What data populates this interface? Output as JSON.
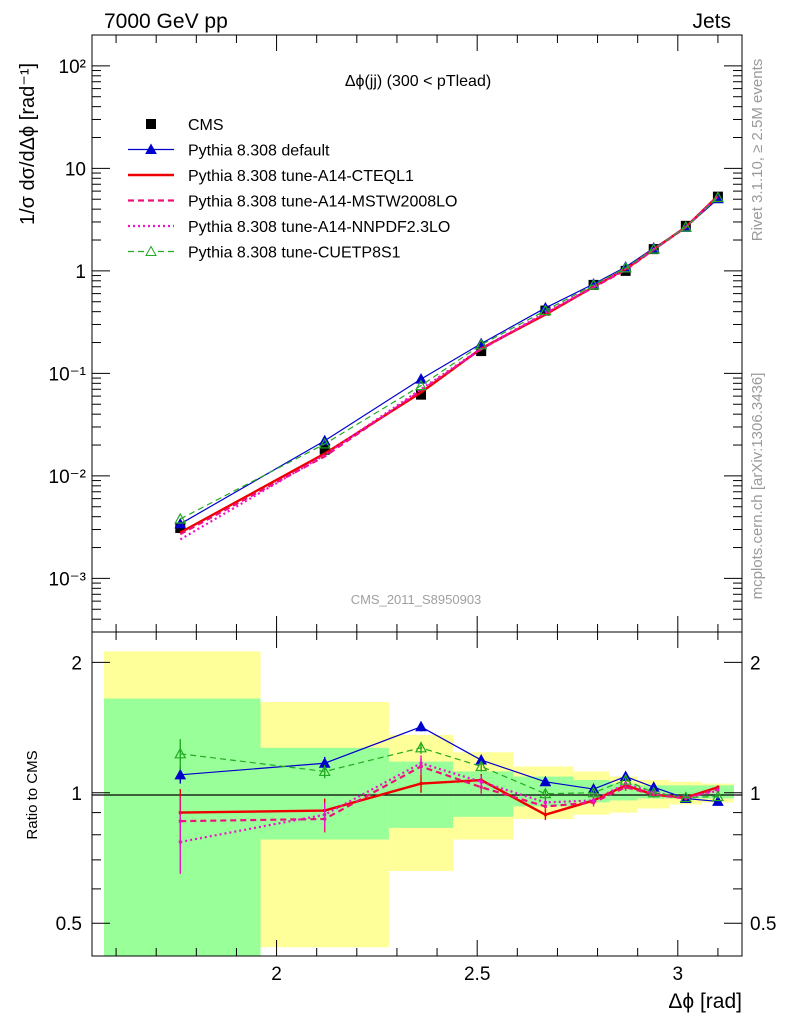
{
  "header": {
    "left": "7000 GeV pp",
    "right": "Jets"
  },
  "side_labels": {
    "rivet": "Rivet 3.1.10, ≥ 2.5M events",
    "source": "mcplots.cern.ch [arXiv:1306.3436]"
  },
  "chart_data": [
    {
      "type": "line",
      "title": "Δϕ(jj) (300 < pTlead)",
      "watermark": "CMS_2011_S8950903",
      "ylabel": "1/σ dσ/dΔϕ [rad⁻¹]",
      "yscale": "log",
      "ylim": [
        0.0003,
        200
      ],
      "xlim": [
        1.54,
        3.16
      ],
      "ytick_labels": [
        {
          "text": "10²",
          "value": 100
        },
        {
          "text": "10",
          "value": 10
        },
        {
          "text": "1",
          "value": 1
        },
        {
          "text": "10⁻¹",
          "value": 0.1
        },
        {
          "text": "10⁻²",
          "value": 0.01
        },
        {
          "text": "10⁻³",
          "value": 0.001
        }
      ],
      "legend_position": "top-left",
      "x": [
        1.76,
        2.12,
        2.36,
        2.51,
        2.67,
        2.79,
        2.87,
        2.94,
        3.02,
        3.1
      ],
      "series": [
        {
          "name": "CMS",
          "color": "#000000",
          "style": "points",
          "values": [
            0.0031,
            0.018,
            0.062,
            0.165,
            0.41,
            0.73,
            1.0,
            1.63,
            2.75,
            5.3
          ]
        },
        {
          "name": "Pythia 8.308 default",
          "color": "#0000cc",
          "style": "solid-triangle",
          "values": [
            0.0034,
            0.022,
            0.088,
            0.195,
            0.435,
            0.745,
            1.09,
            1.67,
            2.66,
            5.05
          ]
        },
        {
          "name": "Pythia 8.308 tune-A14-CTEQL1",
          "color": "#ee0000",
          "style": "solid-thick",
          "values": [
            0.0028,
            0.0165,
            0.065,
            0.175,
            0.375,
            0.7,
            1.04,
            1.62,
            2.68,
            5.4
          ]
        },
        {
          "name": "Pythia 8.308 tune-A14-MSTW2008LO",
          "color": "#ee1177",
          "style": "dashed",
          "values": [
            0.0027,
            0.0155,
            0.068,
            0.172,
            0.385,
            0.69,
            1.02,
            1.61,
            2.66,
            5.35
          ]
        },
        {
          "name": "Pythia 8.308 tune-A14-NNPDF2.3LO",
          "color": "#ee11cc",
          "style": "dotted",
          "values": [
            0.0024,
            0.016,
            0.07,
            0.175,
            0.39,
            0.7,
            1.05,
            1.63,
            2.68,
            5.3
          ]
        },
        {
          "name": "Pythia 8.308 tune-CUETP8S1",
          "color": "#22aa22",
          "style": "dashed-open-triangle",
          "values": [
            0.0038,
            0.0205,
            0.076,
            0.19,
            0.41,
            0.73,
            1.07,
            1.63,
            2.68,
            5.2
          ]
        }
      ]
    },
    {
      "type": "line",
      "ylabel": "Ratio to CMS",
      "xlabel": "Δϕ [rad]",
      "yscale": "log",
      "ylim": [
        0.42,
        2.35
      ],
      "xlim": [
        1.54,
        3.16
      ],
      "ytick_labels": [
        {
          "text": "2",
          "value": 2
        },
        {
          "text": "1",
          "value": 1
        },
        {
          "text": "0.5",
          "value": 0.5
        }
      ],
      "xtick_labels": [
        {
          "text": "2",
          "value": 2.0
        },
        {
          "text": "2.5",
          "value": 2.5
        },
        {
          "text": "3",
          "value": 3.0
        }
      ],
      "bin_edges": [
        1.57,
        1.96,
        2.28,
        2.44,
        2.59,
        2.74,
        2.83,
        2.9,
        2.98,
        3.06,
        3.14
      ],
      "uncertainty_bands": [
        {
          "name": "stat",
          "color": "#99ff99",
          "low": [
            0.37,
            0.78,
            0.83,
            0.88,
            0.93,
            0.95,
            0.96,
            0.97,
            0.97,
            0.97
          ],
          "high": [
            1.65,
            1.27,
            1.18,
            1.12,
            1.09,
            1.07,
            1.05,
            1.04,
            1.04,
            1.04
          ]
        },
        {
          "name": "total",
          "color": "#ffff99",
          "low": [
            0.345,
            0.44,
            0.66,
            0.78,
            0.87,
            0.89,
            0.9,
            0.92,
            0.94,
            0.95
          ],
          "high": [
            2.12,
            1.62,
            1.36,
            1.24,
            1.15,
            1.12,
            1.09,
            1.07,
            1.06,
            1.05
          ]
        }
      ],
      "x": [
        1.76,
        2.12,
        2.36,
        2.51,
        2.67,
        2.79,
        2.87,
        2.94,
        3.02,
        3.1
      ],
      "series": [
        {
          "name": "Pythia 8.308 default",
          "color": "#0000cc",
          "values": [
            1.1,
            1.17,
            1.42,
            1.19,
            1.06,
            1.02,
            1.09,
            1.03,
            0.97,
            0.955
          ],
          "errors": [
            0.05,
            0.04,
            0.035,
            0.03,
            0.02,
            0.015,
            0.015,
            0.012,
            0.01,
            0.01
          ]
        },
        {
          "name": "Pythia 8.308 tune-A14-CTEQL1",
          "color": "#ee0000",
          "values": [
            0.9,
            0.91,
            1.05,
            1.07,
            0.89,
            0.96,
            1.04,
            0.99,
            0.975,
            1.03
          ],
          "errors": [
            0.12,
            0.06,
            0.05,
            0.035,
            0.025,
            0.02,
            0.02,
            0.015,
            0.01,
            0.01
          ]
        },
        {
          "name": "Pythia 8.308 tune-A14-MSTW2008LO",
          "color": "#ee1177",
          "values": [
            0.86,
            0.87,
            1.15,
            1.03,
            0.93,
            0.95,
            1.03,
            0.99,
            0.97,
            1.02
          ],
          "errors": [
            0.12,
            0.06,
            0.05,
            0.035,
            0.025,
            0.02,
            0.02,
            0.015,
            0.01,
            0.01
          ]
        },
        {
          "name": "Pythia 8.308 tune-A14-NNPDF2.3LO",
          "color": "#ee11cc",
          "values": [
            0.77,
            0.89,
            1.17,
            1.06,
            0.95,
            0.96,
            1.05,
            1.0,
            0.975,
            1.01
          ],
          "errors": [
            0.12,
            0.06,
            0.05,
            0.035,
            0.025,
            0.02,
            0.02,
            0.015,
            0.01,
            0.01
          ]
        },
        {
          "name": "Pythia 8.308 tune-CUETP8S1",
          "color": "#22aa22",
          "values": [
            1.23,
            1.12,
            1.27,
            1.15,
            0.995,
            1.0,
            1.07,
            1.0,
            0.975,
            0.98
          ],
          "errors": [
            0.1,
            0.04,
            0.04,
            0.03,
            0.02,
            0.015,
            0.015,
            0.012,
            0.01,
            0.01
          ]
        }
      ]
    }
  ]
}
